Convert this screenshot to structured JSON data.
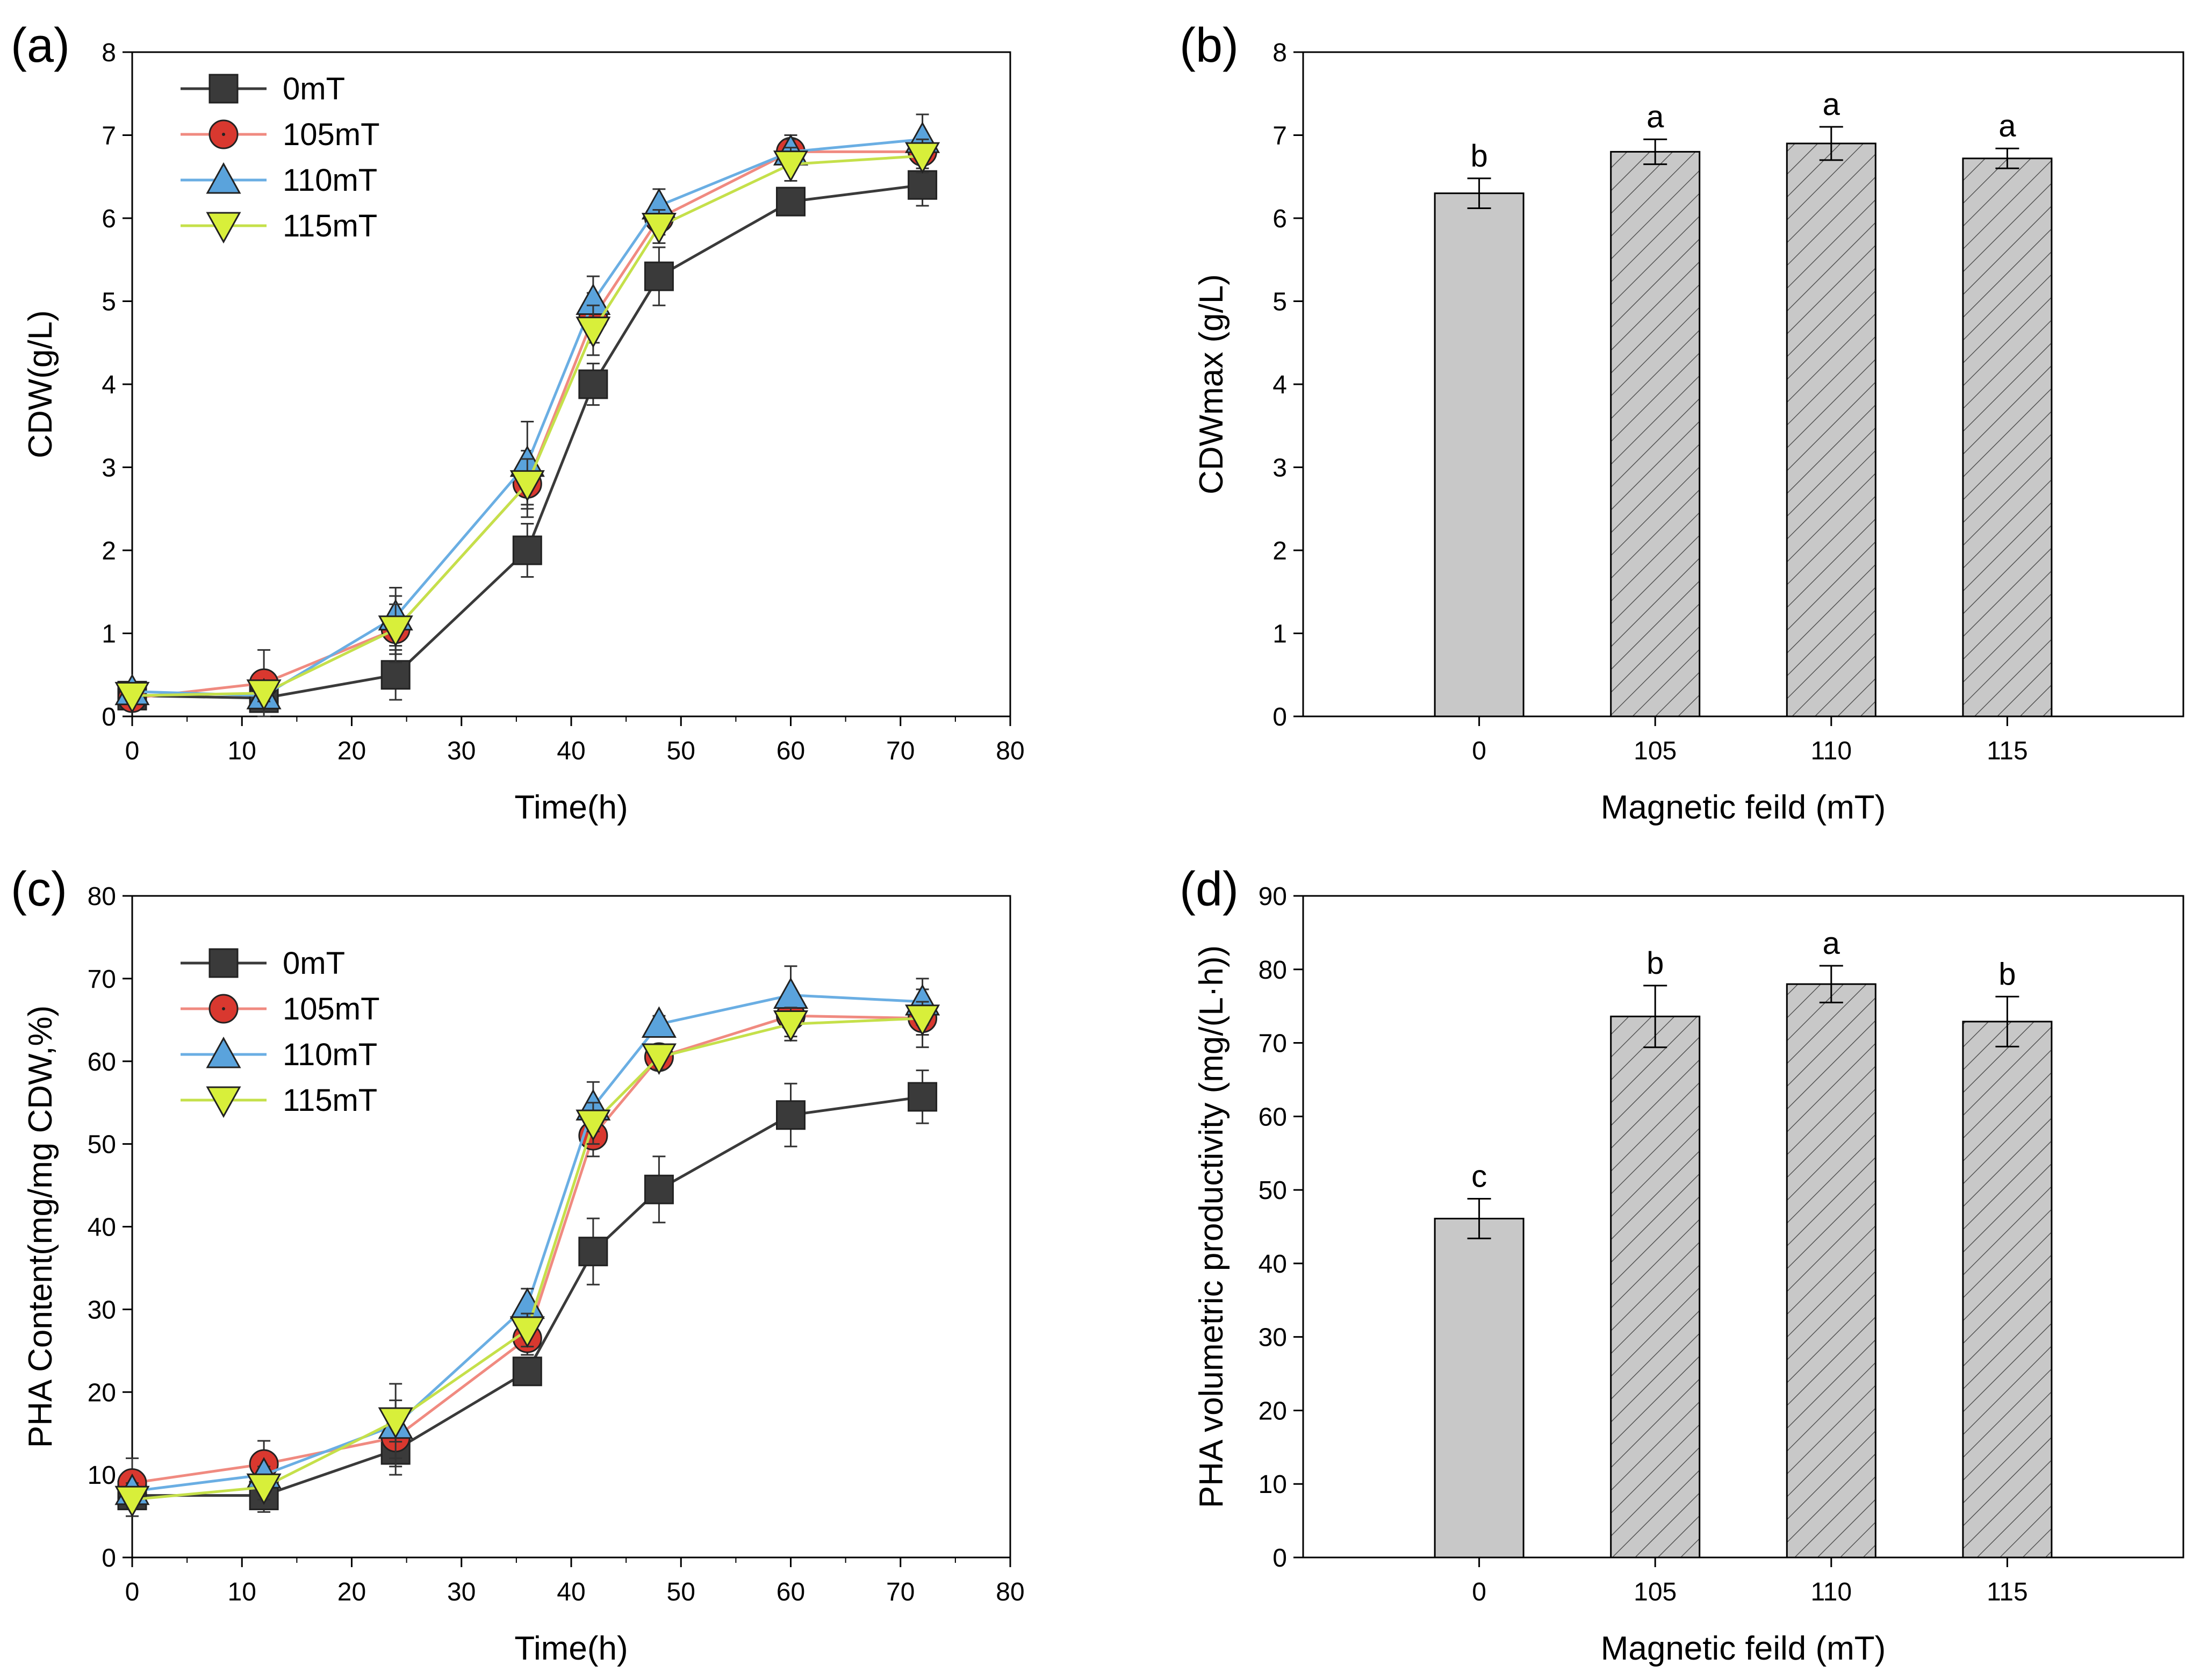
{
  "colors": {
    "s0": "#3a3a3a",
    "s105": "#d9382f",
    "s105_line": "#f08a80",
    "s110": "#5aa3dc",
    "s110_line": "#6aaee3",
    "s115": "#d8ef3a",
    "s115_line": "#c5e04a",
    "bar_fill": "#c8c8c8",
    "axis": "#000000"
  },
  "chart_data": [
    {
      "id": "a",
      "type": "line",
      "panel_label": "(a)",
      "xlabel": "Time(h)",
      "ylabel": "CDW(g/L)",
      "xlim": [
        0,
        80
      ],
      "ylim": [
        0,
        8
      ],
      "xticks": [
        "0",
        "10",
        "20",
        "30",
        "40",
        "50",
        "60",
        "70",
        "80"
      ],
      "yticks": [
        "0",
        "1",
        "2",
        "3",
        "4",
        "5",
        "6",
        "7",
        "8"
      ],
      "legend_position": "top-left",
      "x": [
        0,
        12,
        24,
        36,
        42,
        48,
        60,
        72
      ],
      "series": [
        {
          "name": "0mT",
          "marker": "square",
          "color_key": "s0",
          "values": [
            0.25,
            0.22,
            0.5,
            2.0,
            4.0,
            5.3,
            6.2,
            6.4
          ],
          "errors": [
            0.05,
            0.05,
            0.3,
            0.32,
            0.25,
            0.35,
            0.15,
            0.25
          ]
        },
        {
          "name": "105mT",
          "marker": "circle",
          "color_key": "s105",
          "values": [
            0.22,
            0.4,
            1.05,
            2.8,
            4.8,
            6.0,
            6.8,
            6.8
          ],
          "errors": [
            0.05,
            0.4,
            0.4,
            0.4,
            0.3,
            0.2,
            0.2,
            0.2
          ]
        },
        {
          "name": "110mT",
          "marker": "triangle-up",
          "color_key": "s110",
          "values": [
            0.3,
            0.25,
            1.2,
            3.05,
            5.0,
            6.15,
            6.8,
            6.95
          ],
          "errors": [
            0.1,
            0.1,
            0.35,
            0.5,
            0.3,
            0.2,
            0.15,
            0.3
          ]
        },
        {
          "name": "115mT",
          "marker": "triangle-down",
          "color_key": "s115",
          "values": [
            0.25,
            0.28,
            1.05,
            2.8,
            4.65,
            5.9,
            6.65,
            6.75
          ],
          "errors": [
            0.05,
            0.1,
            0.3,
            0.3,
            0.3,
            0.2,
            0.2,
            0.2
          ]
        }
      ]
    },
    {
      "id": "b",
      "type": "bar",
      "panel_label": "(b)",
      "xlabel": "Magnetic feild (mT)",
      "ylabel": "CDWmax (g/L)",
      "ylim": [
        0,
        8
      ],
      "yticks": [
        "0",
        "1",
        "2",
        "3",
        "4",
        "5",
        "6",
        "7",
        "8"
      ],
      "categories": [
        "0",
        "105",
        "110",
        "115"
      ],
      "values": [
        6.3,
        6.8,
        6.9,
        6.72
      ],
      "errors": [
        0.18,
        0.15,
        0.2,
        0.12
      ],
      "hatched": [
        false,
        true,
        true,
        true
      ],
      "annotations": [
        "b",
        "a",
        "a",
        "a"
      ]
    },
    {
      "id": "c",
      "type": "line",
      "panel_label": "(c)",
      "xlabel": "Time(h)",
      "ylabel": "PHA Content(mg/mg CDW,%)",
      "xlim": [
        0,
        80
      ],
      "ylim": [
        0,
        80
      ],
      "xticks": [
        "0",
        "10",
        "20",
        "30",
        "40",
        "50",
        "60",
        "70",
        "80"
      ],
      "yticks": [
        "0",
        "10",
        "20",
        "30",
        "40",
        "50",
        "60",
        "70",
        "80"
      ],
      "legend_position": "top-left",
      "x": [
        0,
        12,
        24,
        36,
        42,
        48,
        60,
        72
      ],
      "series": [
        {
          "name": "0mT",
          "marker": "square",
          "color_key": "s0",
          "values": [
            7.5,
            7.5,
            13.0,
            22.5,
            37.0,
            44.5,
            53.5,
            55.7
          ],
          "errors": [
            2.5,
            2.0,
            2.0,
            1.5,
            4.0,
            4.0,
            3.8,
            3.2
          ]
        },
        {
          "name": "105mT",
          "marker": "circle",
          "color_key": "s105",
          "values": [
            9.0,
            11.3,
            14.5,
            26.5,
            51.0,
            60.5,
            65.5,
            65.2
          ],
          "errors": [
            3.0,
            2.8,
            4.5,
            2.0,
            2.5,
            1.5,
            2.5,
            3.5
          ]
        },
        {
          "name": "110mT",
          "marker": "triangle-up",
          "color_key": "s110",
          "values": [
            8.0,
            10.0,
            16.0,
            30.5,
            54.5,
            64.5,
            68.0,
            67.2
          ],
          "errors": [
            1.0,
            1.0,
            2.0,
            2.0,
            3.0,
            1.0,
            3.5,
            2.8
          ]
        },
        {
          "name": "115mT",
          "marker": "triangle-down",
          "color_key": "s115",
          "values": [
            7.0,
            8.5,
            16.5,
            27.5,
            52.5,
            60.5,
            64.5,
            65.2
          ],
          "errors": [
            1.0,
            1.5,
            4.5,
            2.0,
            2.5,
            1.5,
            2.0,
            2.0
          ]
        }
      ]
    },
    {
      "id": "d",
      "type": "bar",
      "panel_label": "(d)",
      "xlabel": "Magnetic feild (mT)",
      "ylabel": "PHA volumetric productivity (mg/(L·h))",
      "ylim": [
        0,
        90
      ],
      "yticks": [
        "0",
        "10",
        "20",
        "30",
        "40",
        "50",
        "60",
        "70",
        "80",
        "90"
      ],
      "categories": [
        "0",
        "105",
        "110",
        "115"
      ],
      "values": [
        46.1,
        73.6,
        78.0,
        72.9
      ],
      "errors": [
        2.7,
        4.2,
        2.5,
        3.4
      ],
      "hatched": [
        false,
        true,
        true,
        true
      ],
      "annotations": [
        "c",
        "b",
        "a",
        "b"
      ]
    }
  ]
}
